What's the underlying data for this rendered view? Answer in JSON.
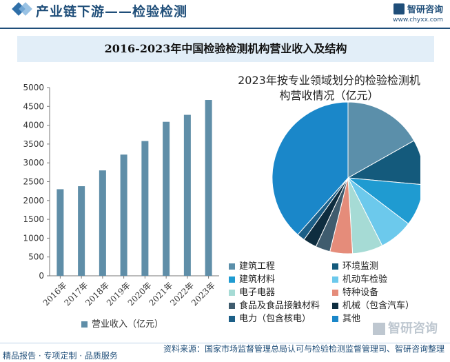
{
  "header": {
    "title": "产业链下游——检验检测",
    "logo_name": "智研咨询",
    "logo_url": "www.chyxx.com"
  },
  "banner": {
    "title": "2016-2023年中国检验检测机构营业收入及结构"
  },
  "colors": {
    "bar": "#5f8ea8",
    "axis": "#777777",
    "brand": "#1f4e79"
  },
  "chart_data": [
    {
      "type": "bar",
      "categories": [
        "2016年",
        "2017年",
        "2018年",
        "2019年",
        "2020年",
        "2021年",
        "2022年",
        "2023年"
      ],
      "series": [
        {
          "name": "营业收入（亿元）",
          "values": [
            2300,
            2380,
            2800,
            3220,
            3580,
            4090,
            4276,
            4670
          ]
        }
      ],
      "ylim": [
        0,
        5000
      ],
      "yticks": [
        0,
        500,
        1000,
        1500,
        2000,
        2500,
        3000,
        3500,
        4000,
        4500,
        5000
      ],
      "grid": false,
      "legend": "bottom"
    },
    {
      "type": "pie",
      "title": "2023年按专业领域划分的检验检测机构营收情况（亿元）",
      "labels": [
        "建筑工程",
        "环境监测",
        "建筑材料",
        "机动车检验",
        "电子电器",
        "特种设备",
        "食品及食品接触材料",
        "机械（包含汽车）",
        "电力（包含核电）",
        "其他"
      ],
      "values": [
        700,
        400,
        370,
        300,
        270,
        200,
        130,
        120,
        70,
        1600
      ],
      "colors": [
        "#5b8faa",
        "#145a7c",
        "#1f9bd1",
        "#6cc9ec",
        "#a6dbd5",
        "#e58c7a",
        "#3f5c6e",
        "#0e2d3f",
        "#1c5f87",
        "#1a87c9"
      ],
      "legend": "bottom"
    }
  ],
  "footer": {
    "left": "精品报告 · 专项定制 · 品质服务",
    "right": "资料来源：国家市场监督管理总局认可与检验检测监督管理司、智研咨询整理"
  },
  "watermark": {
    "text": "智研咨询"
  }
}
